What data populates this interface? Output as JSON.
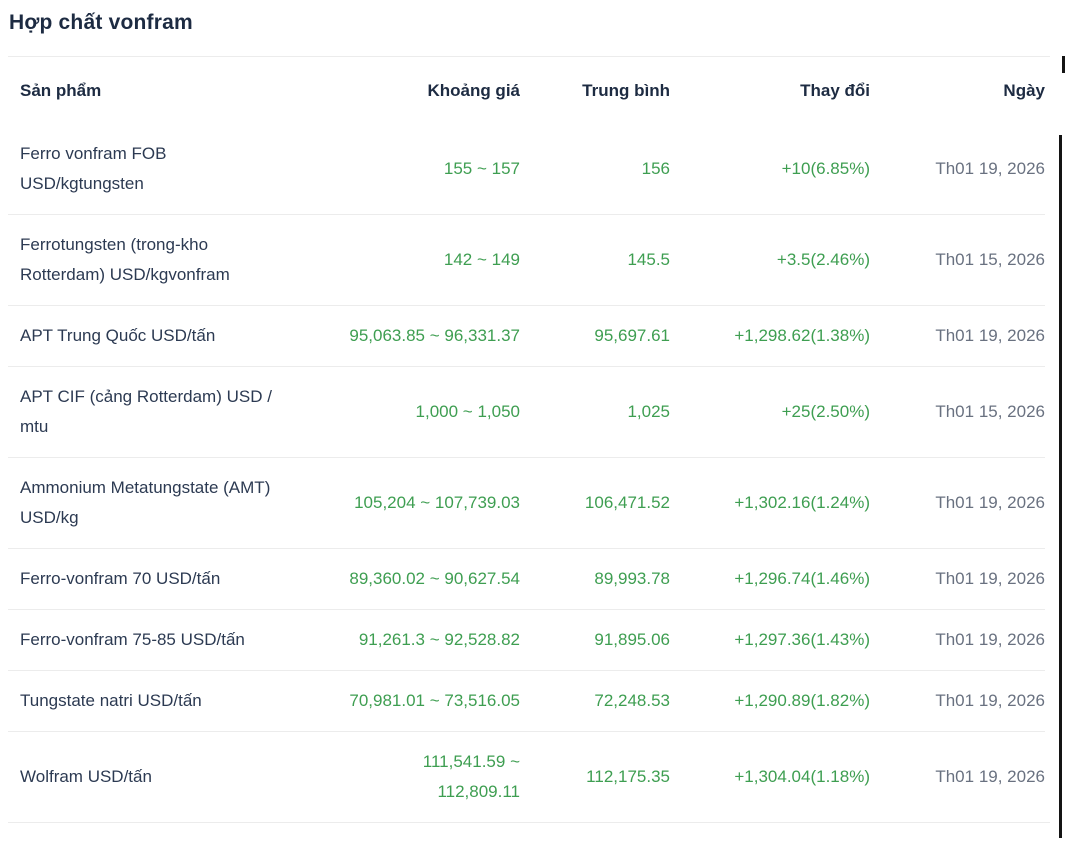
{
  "page": {
    "title": "Hợp chất vonfram"
  },
  "colors": {
    "accent_green": "#3e9e51",
    "heading_navy": "#1d2b42",
    "product_navy": "#2c3a52",
    "date_gray": "#697180",
    "divider_gray": "#ececec",
    "scrollbar_black": "#141414"
  },
  "table": {
    "columns": [
      "Sản phẩm",
      "Khoảng giá",
      "Trung bình",
      "Thay đổi",
      "Ngày"
    ],
    "rows": [
      {
        "product": "Ferro vonfram FOB\nUSD/kgtungsten",
        "range": "155 ~ 157",
        "average": "156",
        "change": "+10(6.85%)",
        "date": "Th01 19, 2026"
      },
      {
        "product": "Ferrotungsten (trong-kho\nRotterdam) USD/kgvonfram",
        "range": "142 ~ 149",
        "average": "145.5",
        "change": "+3.5(2.46%)",
        "date": "Th01 15, 2026"
      },
      {
        "product": "APT Trung Quốc USD/tấn",
        "range": "95,063.85 ~ 96,331.37",
        "average": "95,697.61",
        "change": "+1,298.62(1.38%)",
        "date": "Th01 19, 2026"
      },
      {
        "product": "APT CIF (cảng Rotterdam) USD /\nmtu",
        "range": "1,000 ~ 1,050",
        "average": "1,025",
        "change": "+25(2.50%)",
        "date": "Th01 15, 2026"
      },
      {
        "product": "Ammonium Metatungstate (AMT)\nUSD/kg",
        "range": "105,204 ~ 107,739.03",
        "average": "106,471.52",
        "change": "+1,302.16(1.24%)",
        "date": "Th01 19, 2026"
      },
      {
        "product": "Ferro-vonfram 70 USD/tấn",
        "range": "89,360.02 ~ 90,627.54",
        "average": "89,993.78",
        "change": "+1,296.74(1.46%)",
        "date": "Th01 19, 2026"
      },
      {
        "product": "Ferro-vonfram 75-85 USD/tấn",
        "range": "91,261.3 ~ 92,528.82",
        "average": "91,895.06",
        "change": "+1,297.36(1.43%)",
        "date": "Th01 19, 2026"
      },
      {
        "product": "Tungstate natri USD/tấn",
        "range": "70,981.01 ~ 73,516.05",
        "average": "72,248.53",
        "change": "+1,290.89(1.82%)",
        "date": "Th01 19, 2026"
      },
      {
        "product": "Wolfram USD/tấn",
        "range": "111,541.59 ~\n112,809.11",
        "average": "112,175.35",
        "change": "+1,304.04(1.18%)",
        "date": "Th01 19, 2026"
      }
    ]
  }
}
